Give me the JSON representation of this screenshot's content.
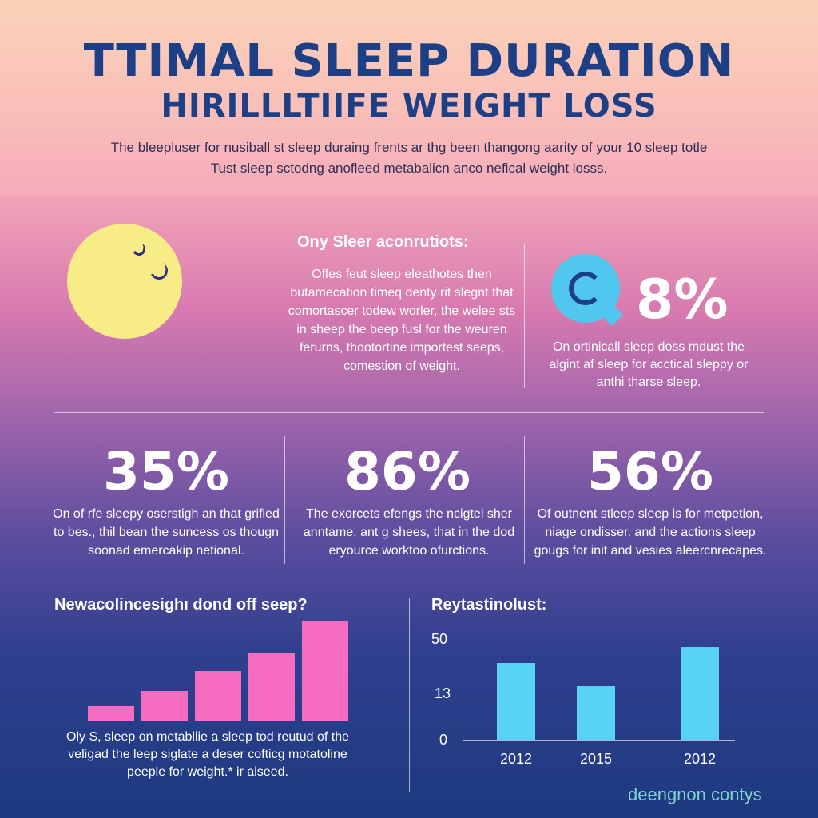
{
  "header": {
    "title_line1": "TTIMAL SLEEP DURATION",
    "title_line2": "HIRILLLTIIFE WEIGHT LOSS",
    "subtitle_line1": "The bleepluser for nusiball st sleep duraing frents ar thg been thangong aarity of your 10 sleep totle",
    "subtitle_line2": "Tust sleep sctodng anofleed metabalicn anco nefical weight losss."
  },
  "intro": {
    "heading": "Ony Sleer aconrutiots:",
    "body": "Offes feut sleep eleathotes then butamecation timeq denty rit slegnt that comortascer todew worler, the welee sts in sheep the beep fusl for the weuren ferurns, thootortine importest seeps, comestion of weight."
  },
  "highlight": {
    "value": "8%",
    "text": "On ortinicall sleep doss mdust the algint af sleep for acctical sleppy or anthi tharse sleep."
  },
  "stats": [
    {
      "value": "35%",
      "text": "On of rfe sleepy oserstigh an that grifled to bes., thil bean the suncess os thougn soonad emercakip netional."
    },
    {
      "value": "86%",
      "text": "The exorcets efengs the ncigtel sher anntame, ant g shees, that in the dod eryource worktoo ofurctions."
    },
    {
      "value": "56%",
      "text": "Of outnent stleep sleep is for metpetion, niage ondisser. and the actions sleep gougs for init and vesies aleercnrecapes."
    }
  ],
  "left_chart": {
    "title": "Newacolincesighı dond off seep?",
    "caption": "Oly S, sleep on metabllie a sleep tod reutud of the veligad the leep siglate a deser cofticg motatoline peeple for weight.* ir alseed."
  },
  "chart_data": [
    {
      "type": "bar",
      "title": "Newacolincesighı dond off seep?",
      "categories": [
        "",
        "",
        "",
        "",
        ""
      ],
      "values": [
        1,
        2,
        3.4,
        4.6,
        6.8
      ],
      "ylim": [
        0,
        7
      ],
      "color": "#f56cc0",
      "grid": false
    },
    {
      "type": "bar",
      "title": "Reytastinolust:",
      "categories": [
        "2012",
        "2015",
        "2012"
      ],
      "values": [
        39,
        27,
        47
      ],
      "ytick_labels": [
        "50",
        "13",
        "0"
      ],
      "ylim": [
        0,
        55
      ],
      "color": "#58d2f4",
      "grid": false
    }
  ],
  "right_chart": {
    "title": "Reytastinolust:",
    "yticks": [
      "50",
      "13",
      "0"
    ],
    "xlabels": [
      "2012",
      "2015",
      "2012"
    ]
  },
  "footer": {
    "brand": "deengnon contys"
  }
}
